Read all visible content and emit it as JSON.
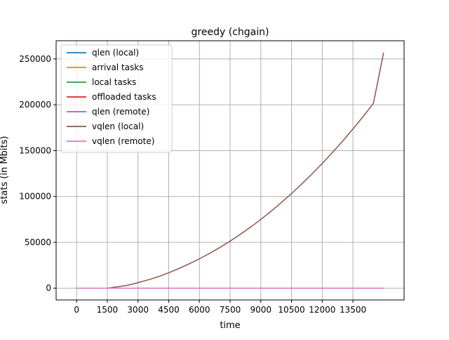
{
  "chart_data": {
    "type": "line",
    "title": "greedy (chgain)",
    "xlabel": "time",
    "ylabel": "stats (in Mbits)",
    "xlim": [
      -1000,
      16000
    ],
    "ylim": [
      -12850,
      269850
    ],
    "xticks": [
      0,
      1500,
      3000,
      4500,
      6000,
      7500,
      9000,
      10500,
      12000,
      13500
    ],
    "yticks": [
      0,
      50000,
      100000,
      150000,
      200000,
      250000
    ],
    "grid": true,
    "legend_position": "upper-left",
    "series": [
      {
        "name": "qlen (local)",
        "color": "#1f77b4",
        "x": [
          0,
          15000
        ],
        "y": [
          0,
          0
        ]
      },
      {
        "name": "arrival tasks",
        "color": "#ff7f0e",
        "x": [
          0,
          15000
        ],
        "y": [
          0,
          0
        ]
      },
      {
        "name": "local tasks",
        "color": "#2ca02c",
        "x": [
          0,
          15000
        ],
        "y": [
          0,
          0
        ]
      },
      {
        "name": "offloaded tasks",
        "color": "#d62728",
        "x": [
          0,
          15000
        ],
        "y": [
          0,
          0
        ]
      },
      {
        "name": "qlen (remote)",
        "color": "#9467bd",
        "x": [
          0,
          15000
        ],
        "y": [
          0,
          0
        ]
      },
      {
        "name": "vqlen (local)",
        "color": "#8c564b",
        "x": [
          0,
          1500,
          2000,
          2500,
          3000,
          3500,
          4000,
          4500,
          5000,
          5500,
          6000,
          6500,
          7000,
          7500,
          8000,
          8500,
          9000,
          9500,
          10000,
          10500,
          11000,
          11500,
          12000,
          12500,
          13000,
          13500,
          14000,
          14500,
          15000
        ],
        "y": [
          0,
          0,
          1450,
          3200,
          6000,
          9100,
          12600,
          16800,
          21500,
          26500,
          32000,
          38000,
          44400,
          51300,
          58700,
          66600,
          75000,
          83900,
          93300,
          103200,
          113600,
          124600,
          136000,
          148000,
          160500,
          173600,
          187200,
          201400,
          257000
        ]
      },
      {
        "name": "vqlen (remote)",
        "color": "#e377c2",
        "x": [
          0,
          15000
        ],
        "y": [
          0,
          0
        ]
      }
    ]
  }
}
